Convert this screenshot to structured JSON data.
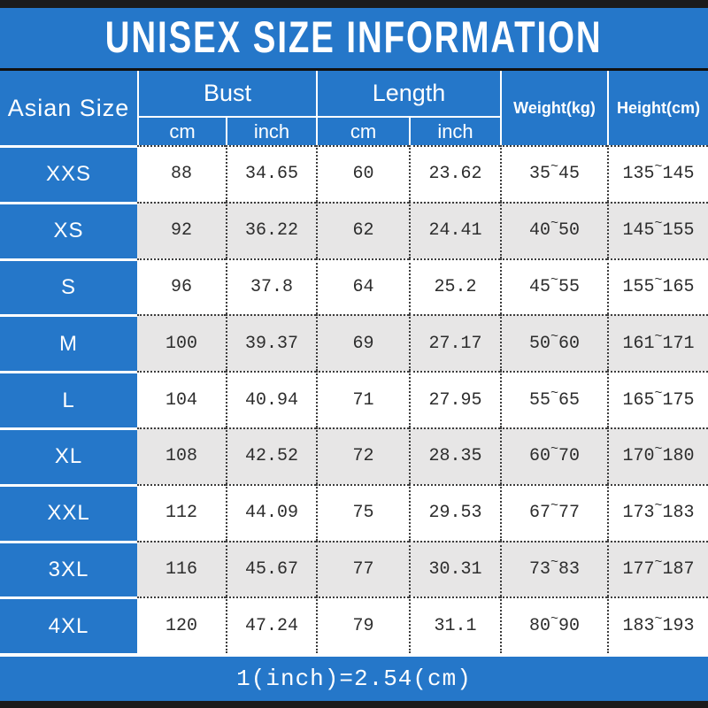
{
  "title": "UNISEX SIZE INFORMATION",
  "header": {
    "size_col": "Asian Size",
    "bust": "Bust",
    "length": "Length",
    "cm": "cm",
    "inch": "inch",
    "weight": "Weight(kg)",
    "height": "Height(cm)"
  },
  "symbols": {
    "tilde": "~"
  },
  "rows": [
    {
      "size": "XXS",
      "bust_cm": "88",
      "bust_inch": "34.65",
      "len_cm": "60",
      "len_inch": "23.62",
      "wt_min": "35",
      "wt_max": "45",
      "ht_min": "135",
      "ht_max": "145"
    },
    {
      "size": "XS",
      "bust_cm": "92",
      "bust_inch": "36.22",
      "len_cm": "62",
      "len_inch": "24.41",
      "wt_min": "40",
      "wt_max": "50",
      "ht_min": "145",
      "ht_max": "155"
    },
    {
      "size": "S",
      "bust_cm": "96",
      "bust_inch": "37.8",
      "len_cm": "64",
      "len_inch": "25.2",
      "wt_min": "45",
      "wt_max": "55",
      "ht_min": "155",
      "ht_max": "165"
    },
    {
      "size": "M",
      "bust_cm": "100",
      "bust_inch": "39.37",
      "len_cm": "69",
      "len_inch": "27.17",
      "wt_min": "50",
      "wt_max": "60",
      "ht_min": "161",
      "ht_max": "171"
    },
    {
      "size": "L",
      "bust_cm": "104",
      "bust_inch": "40.94",
      "len_cm": "71",
      "len_inch": "27.95",
      "wt_min": "55",
      "wt_max": "65",
      "ht_min": "165",
      "ht_max": "175"
    },
    {
      "size": "XL",
      "bust_cm": "108",
      "bust_inch": "42.52",
      "len_cm": "72",
      "len_inch": "28.35",
      "wt_min": "60",
      "wt_max": "70",
      "ht_min": "170",
      "ht_max": "180"
    },
    {
      "size": "XXL",
      "bust_cm": "112",
      "bust_inch": "44.09",
      "len_cm": "75",
      "len_inch": "29.53",
      "wt_min": "67",
      "wt_max": "77",
      "ht_min": "173",
      "ht_max": "183"
    },
    {
      "size": "3XL",
      "bust_cm": "116",
      "bust_inch": "45.67",
      "len_cm": "77",
      "len_inch": "30.31",
      "wt_min": "73",
      "wt_max": "83",
      "ht_min": "177",
      "ht_max": "187"
    },
    {
      "size": "4XL",
      "bust_cm": "120",
      "bust_inch": "47.24",
      "len_cm": "79",
      "len_inch": "31.1",
      "wt_min": "80",
      "wt_max": "90",
      "ht_min": "183",
      "ht_max": "193"
    }
  ],
  "footer": "1(inch)=2.54(cm)",
  "colors": {
    "accent_blue": "#2577c9",
    "alt_row_gray": "#e7e6e6",
    "bar_black": "#1b1b1b"
  },
  "chart_data": {
    "type": "table",
    "title": "UNISEX SIZE INFORMATION",
    "columns": [
      "Asian Size",
      "Bust cm",
      "Bust inch",
      "Length cm",
      "Length inch",
      "Weight(kg)",
      "Height(cm)"
    ],
    "rows": [
      [
        "XXS",
        88,
        34.65,
        60,
        23.62,
        "35~45",
        "135~145"
      ],
      [
        "XS",
        92,
        36.22,
        62,
        24.41,
        "40~50",
        "145~155"
      ],
      [
        "S",
        96,
        37.8,
        64,
        25.2,
        "45~55",
        "155~165"
      ],
      [
        "M",
        100,
        39.37,
        69,
        27.17,
        "50~60",
        "161~171"
      ],
      [
        "L",
        104,
        40.94,
        71,
        27.95,
        "55~65",
        "165~175"
      ],
      [
        "XL",
        108,
        42.52,
        72,
        28.35,
        "60~70",
        "170~180"
      ],
      [
        "XXL",
        112,
        44.09,
        75,
        29.53,
        "67~77",
        "173~183"
      ],
      [
        "3XL",
        116,
        45.67,
        77,
        30.31,
        "73~83",
        "177~187"
      ],
      [
        "4XL",
        120,
        47.24,
        79,
        31.1,
        "80~90",
        "183~193"
      ]
    ],
    "footnote": "1(inch)=2.54(cm)"
  }
}
